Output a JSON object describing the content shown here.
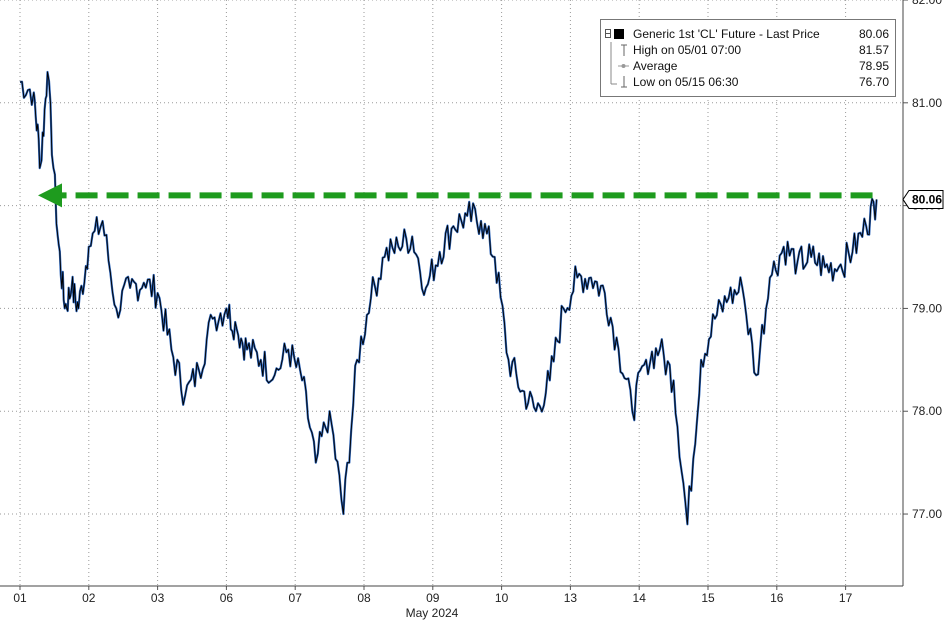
{
  "chart_data": {
    "type": "line",
    "title": "",
    "xlabel": "May 2024",
    "ylabel": "",
    "ylim": [
      76.3,
      82.0
    ],
    "y_ticks": [
      77.0,
      78.0,
      79.0,
      80.0,
      81.0,
      82.0
    ],
    "y_tick_labels": [
      "77.00",
      "78.00",
      "79.00",
      "80.00",
      "81.00",
      "82.00"
    ],
    "x_tick_labels": [
      "01",
      "02",
      "03",
      "06",
      "07",
      "08",
      "09",
      "10",
      "13",
      "14",
      "15",
      "16",
      "17"
    ],
    "grid": true,
    "legend_position": "top-right",
    "colors": {
      "price": "#000000",
      "accent": "#2b63b8",
      "arrow": "#1e9b1e",
      "current_tag_bg": "#ffffff"
    },
    "current_price_label": "80.06",
    "annotation": "green dashed arrow pointing left at the 80.1 level",
    "series": [
      {
        "name": "Generic 1st 'CL' Future - Last Price",
        "x": [
          0.0,
          0.2,
          0.3,
          0.4,
          0.55,
          0.65,
          0.75,
          0.85,
          1.0,
          1.2,
          1.4,
          1.6,
          1.8,
          2.0,
          2.2,
          2.4,
          2.6,
          2.8,
          3.0,
          3.15,
          3.3,
          3.5,
          3.7,
          3.9,
          4.1,
          4.3,
          4.5,
          4.7,
          4.9,
          5.1,
          5.3,
          5.5,
          5.7,
          5.9,
          6.1,
          6.3,
          6.5,
          6.7,
          6.9,
          7.1,
          7.3,
          7.5,
          7.7,
          7.9,
          8.1,
          8.3,
          8.5,
          8.7,
          8.9,
          9.1,
          9.3,
          9.5,
          9.7,
          9.9,
          10.1,
          10.3,
          10.5,
          10.7,
          10.9,
          11.1,
          11.3,
          11.5,
          11.7,
          11.9,
          12.1,
          12.3,
          12.45
        ],
        "y": [
          81.2,
          81.1,
          80.4,
          81.3,
          79.7,
          79.0,
          79.2,
          79.0,
          79.6,
          79.85,
          79.0,
          79.2,
          79.25,
          79.15,
          78.6,
          78.15,
          78.4,
          78.9,
          79.0,
          78.8,
          78.6,
          78.5,
          78.35,
          78.6,
          78.3,
          77.5,
          78.0,
          77.0,
          78.5,
          79.1,
          79.5,
          79.6,
          79.7,
          79.2,
          79.55,
          79.8,
          79.9,
          79.85,
          79.5,
          78.5,
          78.2,
          78.0,
          78.3,
          79.0,
          79.3,
          79.3,
          79.15,
          78.6,
          78.0,
          78.5,
          78.6,
          78.3,
          76.9,
          78.5,
          78.9,
          79.1,
          79.2,
          78.35,
          79.3,
          79.6,
          79.45,
          79.5,
          79.4,
          79.4,
          79.55,
          79.8,
          80.06
        ]
      }
    ],
    "legend": {
      "title": "Generic 1st 'CL' Future - Last Price",
      "title_value": "80.06",
      "rows": [
        {
          "label": "High on 05/01 07:00",
          "value": "81.57",
          "icon": "high-marker-icon"
        },
        {
          "label": "Average",
          "value": "78.95",
          "icon": "average-marker-icon"
        },
        {
          "label": "Low on 05/15 06:30",
          "value": "76.70",
          "icon": "low-marker-icon"
        }
      ]
    }
  }
}
